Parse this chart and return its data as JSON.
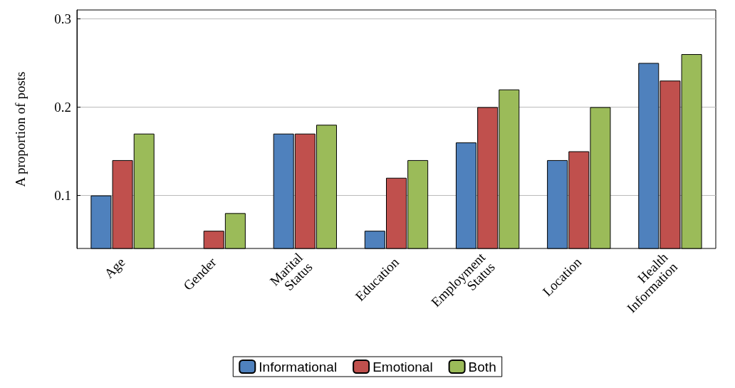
{
  "chart_data": {
    "type": "bar",
    "ylabel": "A proportion of posts",
    "categories": [
      "Age",
      "Gender",
      "Marital Status",
      "Education",
      "Employment Status",
      "Location",
      "Health Information"
    ],
    "series": [
      {
        "name": "Informational",
        "color": "#4f81bd",
        "values": [
          0.1,
          0.04,
          0.17,
          0.06,
          0.16,
          0.14,
          0.25
        ]
      },
      {
        "name": "Emotional",
        "color": "#c0504d",
        "values": [
          0.14,
          0.06,
          0.17,
          0.12,
          0.2,
          0.15,
          0.23
        ]
      },
      {
        "name": "Both",
        "color": "#9bbb59",
        "values": [
          0.17,
          0.08,
          0.18,
          0.14,
          0.22,
          0.2,
          0.26
        ]
      }
    ],
    "ylim": [
      0.04,
      0.31
    ],
    "yticks": [
      0.1,
      0.2,
      0.3
    ],
    "grid": "y",
    "legend": "bottom"
  }
}
